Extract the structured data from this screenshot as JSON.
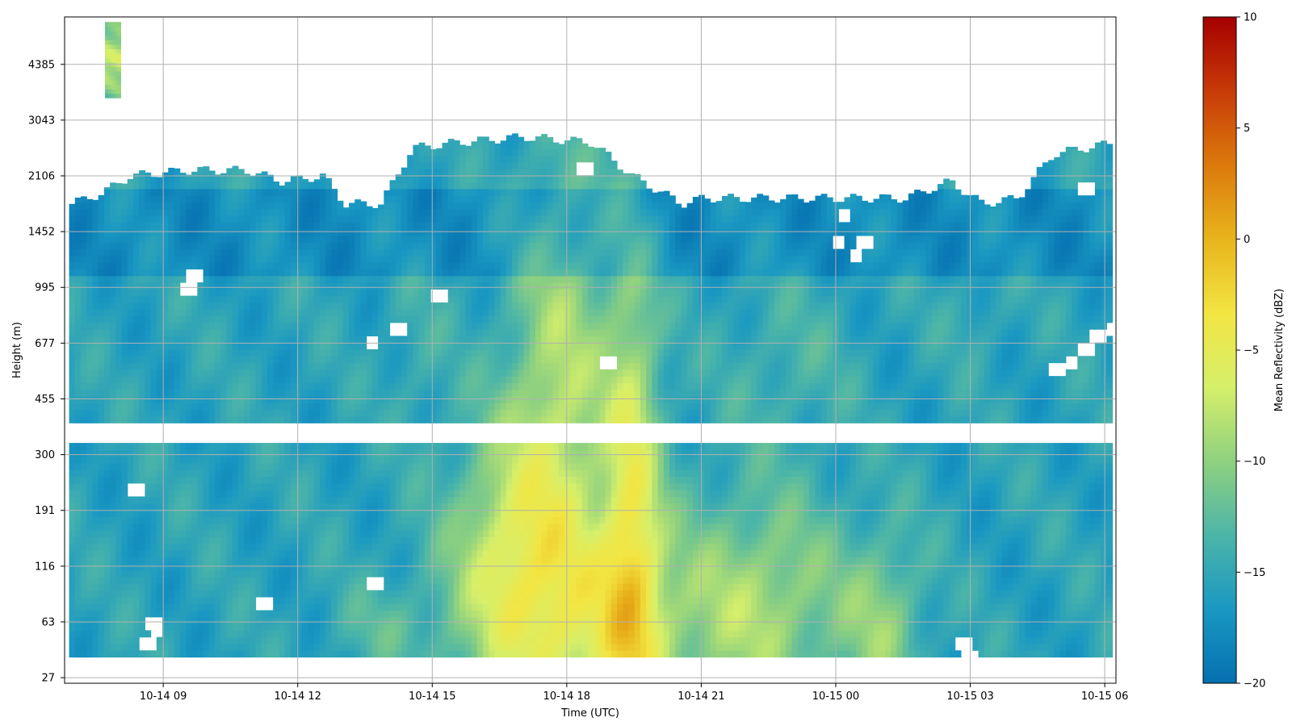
{
  "chart_data": {
    "type": "heatmap",
    "title": "",
    "xlabel": "Time (UTC)",
    "ylabel": "Height (m)",
    "colorbar_label": "Mean Reflectivity (dBZ)",
    "x_ticks": [
      "10-14 09",
      "10-14 12",
      "10-14 15",
      "10-14 18",
      "10-14 21",
      "10-15 00",
      "10-15 03",
      "10-15 06"
    ],
    "y_ticks": [
      "27",
      "63",
      "116",
      "191",
      "300",
      "455",
      "677",
      "995",
      "1452",
      "2106",
      "3043",
      "4385"
    ],
    "colorbar_ticks": [
      10,
      5,
      0,
      -5,
      -10,
      -15,
      -20
    ],
    "colorbar_range": [
      -20,
      10
    ],
    "colormap": [
      "#0570b0",
      "#1a98c2",
      "#4cb5a8",
      "#8fd17f",
      "#d6ef6a",
      "#f2e542",
      "#e8b41c",
      "#db7a0c",
      "#c83a08",
      "#a50000"
    ],
    "x_range_hours": [
      6.8,
      30.25
    ],
    "y_range_index": [
      -0.1,
      11.85
    ],
    "grid": true,
    "gap_height_band": [
      4.25,
      4.55
    ],
    "lower_base_index": 0.37,
    "top_profile": [
      [
        6.9,
        8.5
      ],
      [
        7.6,
        8.7
      ],
      [
        8.2,
        9.0
      ],
      [
        9.5,
        9.1
      ],
      [
        10.8,
        9.1
      ],
      [
        11.6,
        8.9
      ],
      [
        12.5,
        9.0
      ],
      [
        13.0,
        8.5
      ],
      [
        13.8,
        8.5
      ],
      [
        14.5,
        9.5
      ],
      [
        15.5,
        9.6
      ],
      [
        17.0,
        9.7
      ],
      [
        18.5,
        9.6
      ],
      [
        19.4,
        9.0
      ],
      [
        20.5,
        8.5
      ],
      [
        21.0,
        8.6
      ],
      [
        22.5,
        8.6
      ],
      [
        24.0,
        8.6
      ],
      [
        25.5,
        8.6
      ],
      [
        26.5,
        8.9
      ],
      [
        27.2,
        8.5
      ],
      [
        28.0,
        8.6
      ],
      [
        28.8,
        9.4
      ],
      [
        30.2,
        9.6
      ]
    ],
    "high_echo": {
      "x_range_hours": [
        7.7,
        8.05
      ],
      "y_range_index": [
        10.4,
        11.7
      ]
    },
    "features": [
      {
        "t": 17.8,
        "h": 5.0,
        "w": 1.1,
        "hw": 4.0,
        "v": 7
      },
      {
        "t": 19.4,
        "h": 3.0,
        "w": 0.65,
        "hw": 4.6,
        "v": 9
      },
      {
        "t": 18.2,
        "h": 0.9,
        "w": 2.8,
        "hw": 2.0,
        "v": 8
      },
      {
        "t": 16.6,
        "h": 2.7,
        "w": 1.2,
        "hw": 2.2,
        "v": 6
      },
      {
        "t": 22.4,
        "h": 1.3,
        "w": 1.8,
        "hw": 2.0,
        "v": 6
      },
      {
        "t": 25.0,
        "h": 1.0,
        "w": 0.9,
        "hw": 1.6,
        "v": 5
      },
      {
        "t": 22.8,
        "h": 5.6,
        "w": 1.4,
        "hw": 1.5,
        "v": 2
      },
      {
        "t": 13.7,
        "h": 0.9,
        "w": 1.0,
        "hw": 0.7,
        "v": 2
      },
      {
        "t": 14.6,
        "h": 5.8,
        "w": 0.7,
        "hw": 1.5,
        "v": 1.5
      },
      {
        "t": 27.0,
        "h": 6.4,
        "w": 0.8,
        "hw": 0.8,
        "v": 1.2
      }
    ],
    "gaps": [
      [
        8.3,
        3.4
      ],
      [
        8.7,
        1.0
      ],
      [
        8.6,
        0.6
      ],
      [
        8.8,
        0.9
      ],
      [
        9.5,
        7.0
      ],
      [
        9.6,
        7.2
      ],
      [
        11.2,
        4.3
      ],
      [
        11.2,
        1.3
      ],
      [
        13.6,
        6.0
      ],
      [
        13.7,
        1.7
      ],
      [
        14.2,
        6.3
      ],
      [
        15.1,
        6.9
      ],
      [
        18.3,
        9.1
      ],
      [
        18.9,
        5.6
      ],
      [
        24.1,
        8.3
      ],
      [
        24.0,
        7.8
      ],
      [
        24.4,
        7.6
      ],
      [
        24.6,
        7.8
      ],
      [
        26.8,
        0.6
      ],
      [
        26.9,
        0.4
      ],
      [
        28.9,
        5.5
      ],
      [
        29.2,
        5.7
      ],
      [
        29.5,
        5.9
      ],
      [
        29.8,
        6.1
      ],
      [
        30.1,
        6.2
      ],
      [
        29.5,
        8.8
      ]
    ]
  }
}
